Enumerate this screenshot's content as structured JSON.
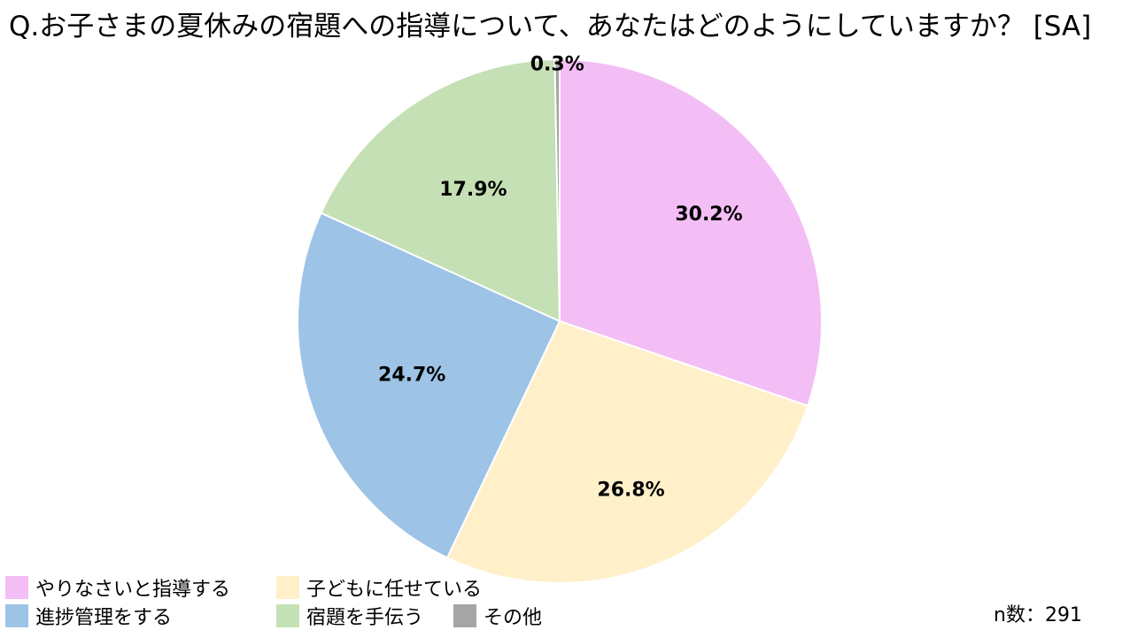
{
  "title": "Q.お子さまの夏休みの宿題への指導について、あなたはどのようにしていますか？ [SA]",
  "sample_size": "n数：291",
  "chart_data": {
    "type": "pie",
    "title": "Q.お子さまの夏休みの宿題への指導について、あなたはどのようにしていますか？ [SA]",
    "categories": [
      "やりなさいと指導する",
      "子どもに任せている",
      "進捗管理をする",
      "宿題を手伝う",
      "その他"
    ],
    "values": [
      30.2,
      26.8,
      24.7,
      17.9,
      0.3
    ],
    "labels": [
      "30.2%",
      "26.8%",
      "24.7%",
      "17.9%",
      "0.3%"
    ],
    "colors": [
      "#F3BDF5",
      "#FFF0CA",
      "#9DC3E6",
      "#C5E0B4",
      "#A5A5A5"
    ],
    "start_angle": "12 o'clock",
    "direction": "clockwise",
    "legend_position": "bottom"
  }
}
